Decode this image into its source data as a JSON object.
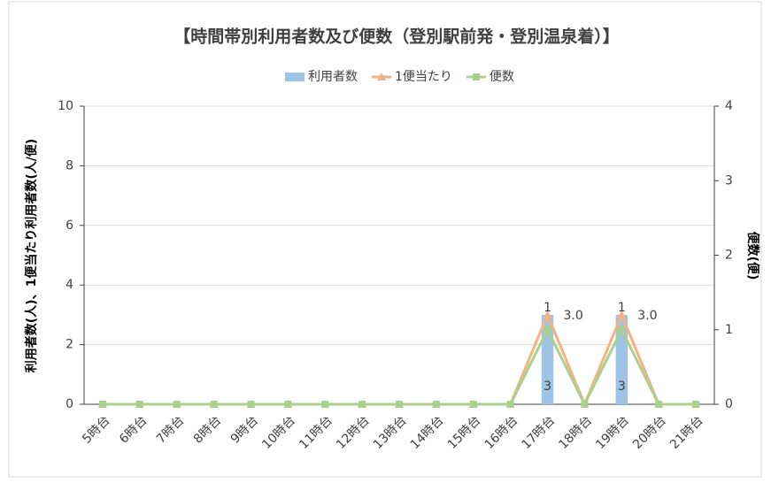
{
  "chart_data": {
    "type": "bar",
    "title": "【時間帯別利用者数及び便数（登別駅前発・登別温泉着）】",
    "categories": [
      "5時台",
      "6時台",
      "7時台",
      "8時台",
      "9時台",
      "10時台",
      "11時台",
      "12時台",
      "13時台",
      "14時台",
      "15時台",
      "16時台",
      "17時台",
      "18時台",
      "19時台",
      "20時台",
      "21時台"
    ],
    "series": [
      {
        "name": "利用者数",
        "type": "bar",
        "color": "#9dc3e6",
        "values": [
          0,
          0,
          0,
          0,
          0,
          0,
          0,
          0,
          0,
          0,
          0,
          0,
          3,
          0,
          3,
          0,
          0
        ],
        "show_labels": [
          false,
          false,
          false,
          false,
          false,
          false,
          false,
          false,
          false,
          false,
          false,
          false,
          true,
          false,
          true,
          false,
          false
        ]
      },
      {
        "name": "1便当たり",
        "type": "line",
        "marker": "triangle",
        "color": "#f4b183",
        "values": [
          0,
          0,
          0,
          0,
          0,
          0,
          0,
          0,
          0,
          0,
          0,
          0,
          3,
          0,
          3,
          0,
          0
        ],
        "value_labels": [
          null,
          null,
          null,
          null,
          null,
          null,
          null,
          null,
          null,
          null,
          null,
          null,
          "3.0",
          null,
          "3.0",
          null,
          null
        ]
      },
      {
        "name": "便数",
        "type": "line",
        "marker": "square",
        "axis": "y2",
        "color": "#a9d18e",
        "values": [
          0,
          0,
          0,
          0,
          0,
          0,
          0,
          0,
          0,
          0,
          0,
          0,
          1,
          0,
          1,
          0,
          0
        ],
        "show_labels": [
          false,
          false,
          false,
          false,
          false,
          false,
          false,
          false,
          false,
          false,
          false,
          false,
          true,
          false,
          true,
          false,
          false
        ]
      }
    ],
    "ylabel": "利用者数(人)、1便当たり利用者数(人/便)",
    "y2label": "便数(便)",
    "ylim": [
      0,
      10
    ],
    "yticks": [
      0,
      2,
      4,
      6,
      8,
      10
    ],
    "y2lim": [
      0,
      4
    ],
    "y2ticks": [
      0,
      1,
      2,
      3,
      4
    ],
    "grid": true,
    "legend": "top"
  }
}
